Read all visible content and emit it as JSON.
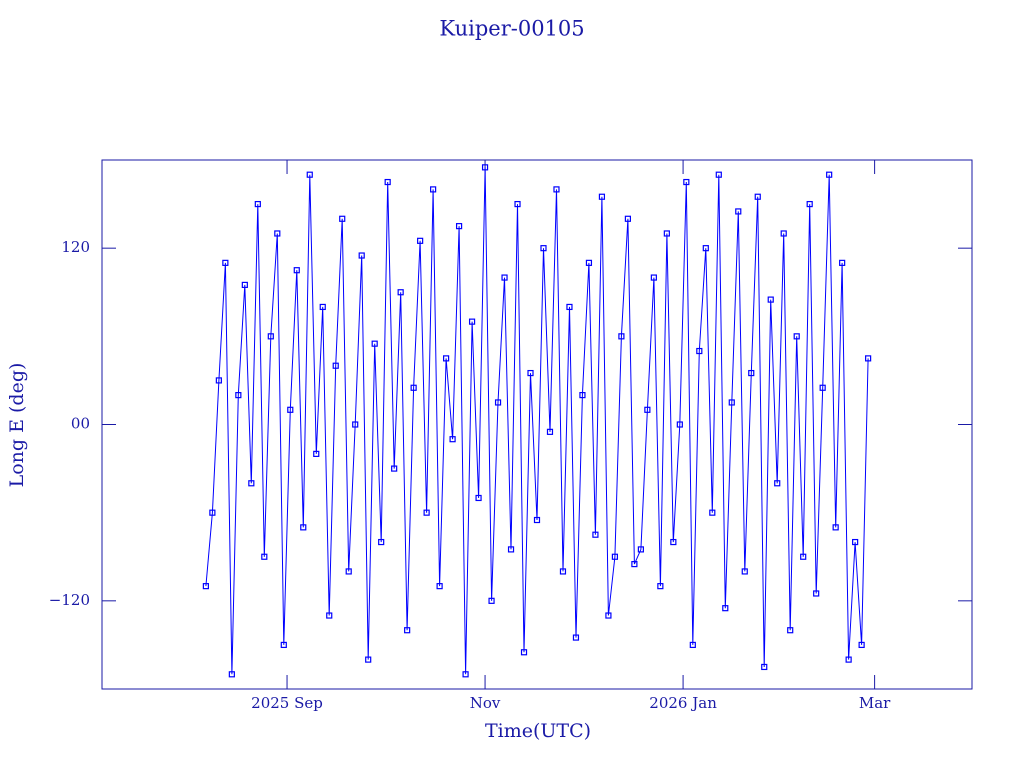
{
  "chart_data": {
    "type": "line",
    "title": "Kuiper-00105",
    "x_label": "Time(UTC)",
    "y_label": "Long E (deg)",
    "color": "#0000ff",
    "axis_color": "#1a1aa6",
    "markers": true,
    "xlim": [
      -57,
      211
    ],
    "ylim": [
      -180,
      180
    ],
    "xticks": [
      {
        "value": 0,
        "label": "2025 Sep"
      },
      {
        "value": 61,
        "label": "Nov"
      },
      {
        "value": 122,
        "label": "2026 Jan"
      },
      {
        "value": 181,
        "label": "Mar"
      }
    ],
    "yticks": [
      {
        "value": -120,
        "label": "−120"
      },
      {
        "value": 0,
        "label": "00"
      },
      120
    ],
    "series": [
      {
        "name": "Kuiper-00105",
        "x": [
          -25,
          -23,
          -21,
          -19,
          -17,
          -15,
          -13,
          -11,
          -9,
          -7,
          -5,
          -3,
          -1,
          1,
          3,
          5,
          7,
          9,
          11,
          13,
          15,
          17,
          19,
          21,
          23,
          25,
          27,
          29,
          31,
          33,
          35,
          37,
          39,
          41,
          43,
          45,
          47,
          49,
          51,
          53,
          55,
          57,
          59,
          61,
          63,
          65,
          67,
          69,
          71,
          73,
          75,
          77,
          79,
          81,
          83,
          85,
          87,
          89,
          91,
          93,
          95,
          97,
          99,
          101,
          103,
          105,
          107,
          109,
          111,
          113,
          115,
          117,
          119,
          121,
          123,
          125,
          127,
          129,
          131,
          133,
          135,
          137,
          139,
          141,
          143,
          145,
          147,
          149,
          151,
          153,
          155,
          157,
          159,
          161,
          163,
          165,
          167,
          169,
          171,
          173,
          175,
          177,
          179
        ],
        "values": [
          -110,
          -60,
          30,
          110,
          -170,
          20,
          95,
          -40,
          150,
          -90,
          60,
          130,
          -150,
          10,
          105,
          -70,
          170,
          -20,
          80,
          -130,
          40,
          140,
          -100,
          0,
          115,
          -160,
          55,
          -80,
          165,
          -30,
          90,
          -140,
          25,
          125,
          -60,
          160,
          -110,
          45,
          -10,
          135,
          -170,
          70,
          -50,
          175,
          -120,
          15,
          100,
          -85,
          150,
          -155,
          35,
          -65,
          120,
          -5,
          160,
          -100,
          80,
          -145,
          20,
          110,
          -75,
          155,
          -130,
          -90,
          60,
          140,
          -95,
          -85,
          10,
          100,
          -110,
          130,
          -80,
          0,
          165,
          -150,
          50,
          120,
          -60,
          170,
          -125,
          15,
          145,
          -100,
          35,
          155,
          -165,
          85,
          -40,
          130,
          -140,
          60,
          -90,
          150,
          -115,
          25,
          170,
          -70,
          110,
          -160,
          -80,
          -150,
          45
        ]
      }
    ]
  }
}
